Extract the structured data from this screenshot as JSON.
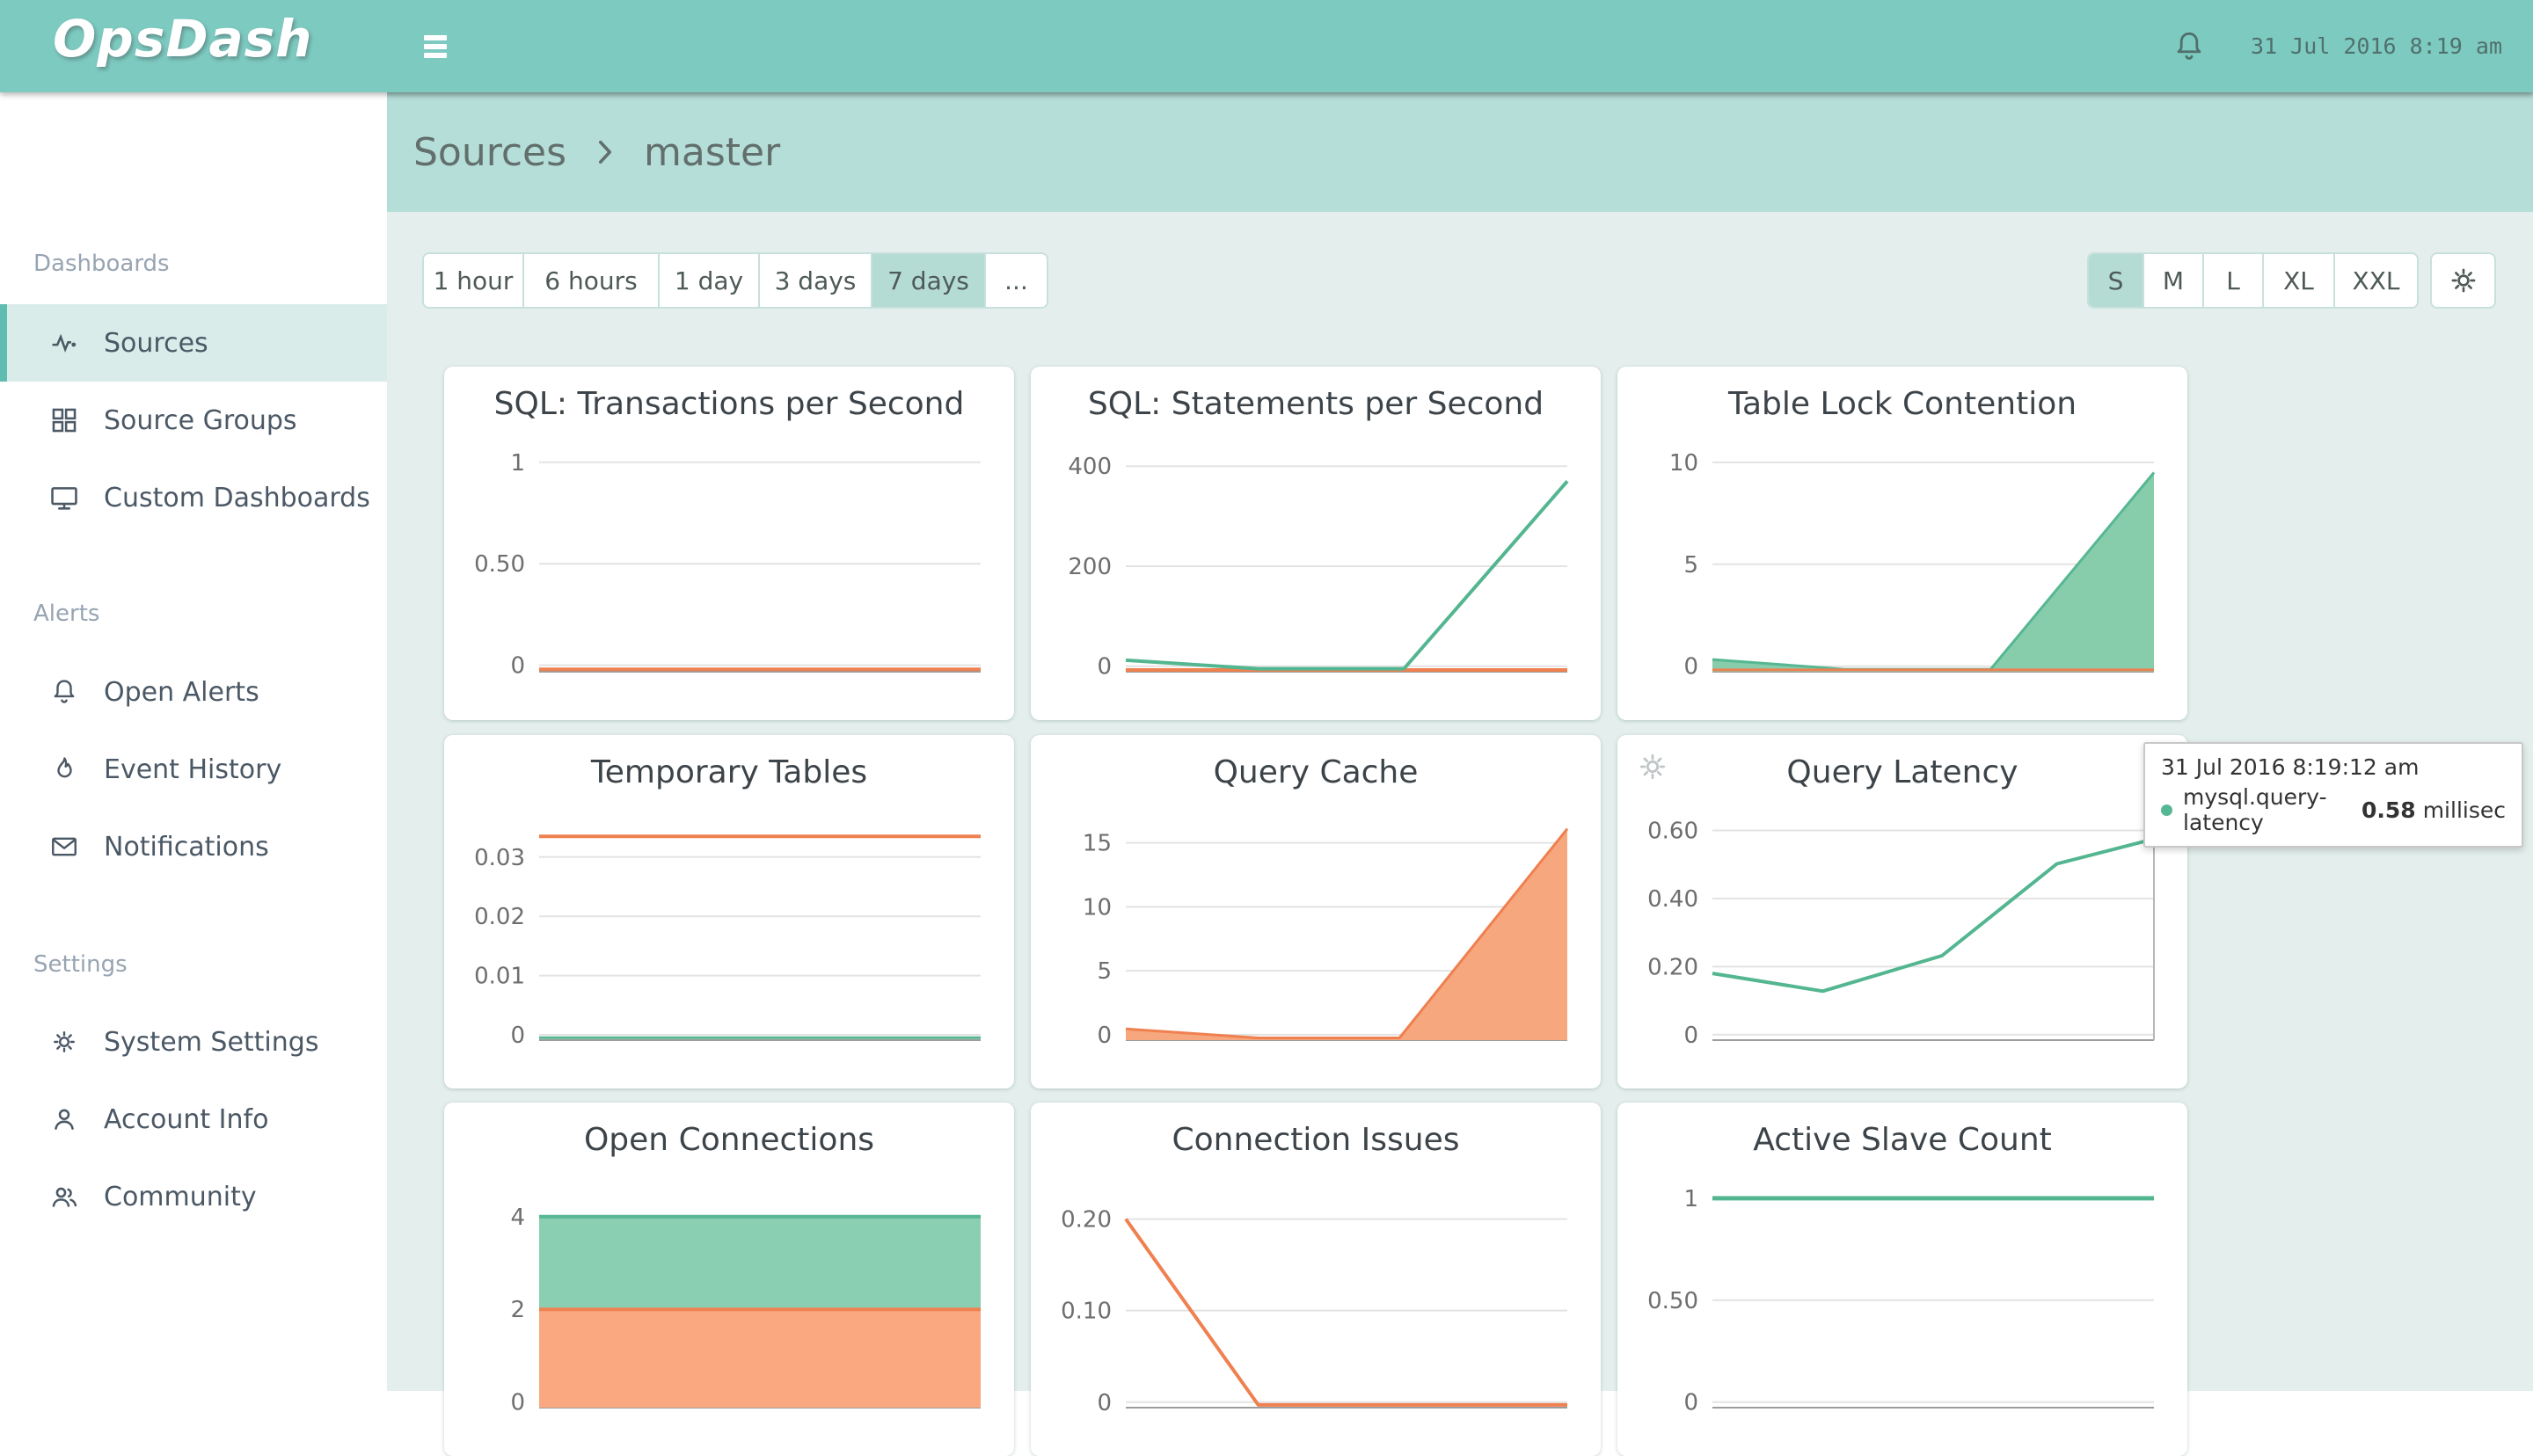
{
  "header": {
    "logo": "OpsDash",
    "time": "31 Jul 2016 8:19 am"
  },
  "sidebar": {
    "sections": [
      {
        "label": "Dashboards",
        "items": [
          {
            "label": "Sources",
            "icon": "activity-icon",
            "selected": true
          },
          {
            "label": "Source Groups",
            "icon": "grid-icon",
            "selected": false
          },
          {
            "label": "Custom Dashboards",
            "icon": "monitor-icon",
            "selected": false
          }
        ]
      },
      {
        "label": "Alerts",
        "items": [
          {
            "label": "Open Alerts",
            "icon": "bell-icon",
            "selected": false
          },
          {
            "label": "Event History",
            "icon": "flame-icon",
            "selected": false
          },
          {
            "label": "Notifications",
            "icon": "envelope-icon",
            "selected": false
          }
        ]
      },
      {
        "label": "Settings",
        "items": [
          {
            "label": "System Settings",
            "icon": "gear-icon",
            "selected": false
          },
          {
            "label": "Account Info",
            "icon": "user-icon",
            "selected": false
          },
          {
            "label": "Community",
            "icon": "users-icon",
            "selected": false
          }
        ]
      }
    ]
  },
  "breadcrumb": {
    "parent": "Sources",
    "current": "master"
  },
  "controls": {
    "time_ranges": [
      "1 hour",
      "6 hours",
      "1 day",
      "3 days",
      "7 days",
      "..."
    ],
    "active_time_range": "7 days",
    "sizes": [
      "S",
      "M",
      "L",
      "XL",
      "XXL"
    ],
    "active_size": "S"
  },
  "tooltip": {
    "timestamp": "31 Jul 2016 8:19:12 am",
    "series": "mysql.query-latency",
    "value": "0.58",
    "unit": "millisec"
  },
  "colors": {
    "header_teal": "#7dcac1",
    "breadcrumb_band": "#b5ded8",
    "main_bg": "#e4efed",
    "selected_item_bg": "#d9ece9",
    "selected_item_border": "#5fbcb0",
    "green_line": "#53b690",
    "green_fill": "#87cdab",
    "orange_line": "#ef8050",
    "orange_fill": "#f7a77e"
  },
  "chart_data": [
    {
      "type": "line",
      "title": "SQL: Transactions per Second",
      "ylim": [
        -0.032,
        1.06
      ],
      "ticks": [
        {
          "v": 1,
          "label": "1"
        },
        {
          "v": 0.5,
          "label": "0.50"
        },
        {
          "v": 0,
          "label": "0"
        }
      ],
      "series": [
        {
          "type": "line",
          "color": "#ef8050",
          "width": 4,
          "points": [
            [
              0,
              -0.02
            ],
            [
              1,
              -0.02
            ]
          ]
        }
      ]
    },
    {
      "type": "line",
      "title": "SQL: Statements per Second",
      "ylim": [
        -11,
        432
      ],
      "ticks": [
        {
          "v": 400,
          "label": "400"
        },
        {
          "v": 200,
          "label": "200"
        },
        {
          "v": 0,
          "label": "0"
        }
      ],
      "series": [
        {
          "type": "line",
          "color": "#ef8050",
          "width": 4,
          "points": [
            [
              0,
              -7.5
            ],
            [
              1,
              -7.5
            ]
          ]
        },
        {
          "type": "line",
          "color": "#53b690",
          "width": 4,
          "points": [
            [
              0,
              12
            ],
            [
              0.3,
              -5
            ],
            [
              0.63,
              -5
            ],
            [
              1,
              370
            ]
          ]
        }
      ]
    },
    {
      "type": "area",
      "title": "Table Lock Contention",
      "ylim": [
        -0.27,
        10.6
      ],
      "ticks": [
        {
          "v": 10,
          "label": "10"
        },
        {
          "v": 5,
          "label": "5"
        },
        {
          "v": 0,
          "label": "0"
        }
      ],
      "series": [
        {
          "type": "area",
          "color": "#57b793",
          "fill": "#87cdab",
          "width": 3,
          "points": [
            [
              0,
              0.33
            ],
            [
              0.3,
              -0.15
            ],
            [
              0.63,
              -0.15
            ],
            [
              1,
              9.5
            ]
          ]
        },
        {
          "type": "line",
          "color": "#ef8050",
          "width": 3,
          "points": [
            [
              0,
              -0.18
            ],
            [
              1,
              -0.18
            ]
          ]
        }
      ]
    },
    {
      "type": "line",
      "title": "Temporary Tables",
      "ylim": [
        -0.0009,
        0.0365
      ],
      "ticks": [
        {
          "v": 0.03,
          "label": "0.03"
        },
        {
          "v": 0.02,
          "label": "0.02"
        },
        {
          "v": 0.01,
          "label": "0.01"
        },
        {
          "v": 0,
          "label": "0"
        }
      ],
      "series": [
        {
          "type": "line",
          "color": "#53b690",
          "width": 3,
          "points": [
            [
              0,
              -0.0005
            ],
            [
              1,
              -0.0005
            ]
          ]
        },
        {
          "type": "line",
          "color": "#ef8050",
          "width": 4,
          "points": [
            [
              0,
              0.0335
            ],
            [
              1,
              0.0335
            ]
          ]
        }
      ]
    },
    {
      "type": "area",
      "title": "Query Cache",
      "ylim": [
        -0.42,
        16.9
      ],
      "ticks": [
        {
          "v": 15,
          "label": "15"
        },
        {
          "v": 10,
          "label": "10"
        },
        {
          "v": 5,
          "label": "5"
        },
        {
          "v": 0,
          "label": "0"
        }
      ],
      "series": [
        {
          "type": "area",
          "color": "#ef8050",
          "fill": "#f7a77e",
          "width": 3,
          "points": [
            [
              0,
              0.45
            ],
            [
              0.3,
              -0.25
            ],
            [
              0.62,
              -0.25
            ],
            [
              1,
              16.1
            ]
          ]
        }
      ]
    },
    {
      "type": "line",
      "title": "Query Latency",
      "ylim": [
        -0.016,
        0.635
      ],
      "crosshair": 1,
      "has_gear": true,
      "ticks": [
        {
          "v": 0.6,
          "label": "0.60"
        },
        {
          "v": 0.4,
          "label": "0.40"
        },
        {
          "v": 0.2,
          "label": "0.20"
        },
        {
          "v": 0,
          "label": "0"
        }
      ],
      "series": [
        {
          "type": "line",
          "color": "#53b690",
          "width": 4,
          "marker": true,
          "points": [
            [
              0,
              0.18
            ],
            [
              0.25,
              0.128
            ],
            [
              0.52,
              0.232
            ],
            [
              0.78,
              0.502
            ],
            [
              1,
              0.575
            ]
          ]
        }
      ]
    },
    {
      "type": "area",
      "title": "Open Connections",
      "ylim": [
        -0.12,
        4.66
      ],
      "ticks": [
        {
          "v": 4,
          "label": "4"
        },
        {
          "v": 2,
          "label": "2"
        },
        {
          "v": 0,
          "label": "0"
        }
      ],
      "series": [
        {
          "type": "area",
          "color": "#58b794",
          "fill": "#8bcfb2",
          "width": 4,
          "points": [
            [
              0,
              4
            ],
            [
              1,
              4
            ]
          ]
        },
        {
          "type": "area",
          "color": "#f08252",
          "fill": "#f9a87f",
          "width": 4,
          "points": [
            [
              0,
              2
            ],
            [
              1,
              2
            ]
          ]
        }
      ]
    },
    {
      "type": "line",
      "title": "Connection Issues",
      "ylim": [
        -0.006,
        0.236
      ],
      "ticks": [
        {
          "v": 0.2,
          "label": "0.20"
        },
        {
          "v": 0.1,
          "label": "0.10"
        },
        {
          "v": 0,
          "label": "0"
        }
      ],
      "series": [
        {
          "type": "line",
          "color": "#ef8050",
          "width": 4,
          "points": [
            [
              0,
              0.2
            ],
            [
              0.3,
              -0.003
            ],
            [
              1,
              -0.003
            ]
          ]
        }
      ]
    },
    {
      "type": "line",
      "title": "Active Slave Count",
      "ylim": [
        -0.027,
        1.06
      ],
      "ticks": [
        {
          "v": 1,
          "label": "1"
        },
        {
          "v": 0.5,
          "label": "0.50"
        },
        {
          "v": 0,
          "label": "0"
        }
      ],
      "series": [
        {
          "type": "line",
          "color": "#53b690",
          "width": 5,
          "points": [
            [
              0,
              1
            ],
            [
              1,
              1
            ]
          ]
        }
      ]
    }
  ]
}
